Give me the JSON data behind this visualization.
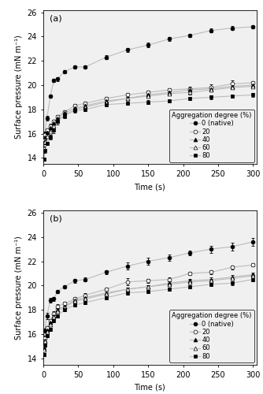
{
  "panel_a": {
    "label": "(a)",
    "series": [
      {
        "name": "0 (native)",
        "marker": "o",
        "fillstyle": "full",
        "x": [
          1,
          2,
          5,
          10,
          15,
          20,
          30,
          45,
          60,
          90,
          120,
          150,
          180,
          210,
          240,
          270,
          300
        ],
        "y": [
          15.5,
          16.0,
          17.3,
          19.1,
          20.4,
          20.5,
          21.1,
          21.5,
          21.5,
          22.3,
          22.9,
          23.3,
          23.8,
          24.1,
          24.5,
          24.7,
          24.8
        ],
        "yerr": [
          0.15,
          0.15,
          0.2,
          0.15,
          0.15,
          0.15,
          0.15,
          0.15,
          0.15,
          0.15,
          0.15,
          0.2,
          0.15,
          0.15,
          0.15,
          0.15,
          0.15
        ]
      },
      {
        "name": "20",
        "marker": "o",
        "fillstyle": "none",
        "x": [
          1,
          2,
          5,
          10,
          15,
          20,
          30,
          45,
          60,
          90,
          120,
          150,
          180,
          210,
          240,
          270,
          300
        ],
        "y": [
          15.5,
          15.9,
          16.3,
          16.6,
          17.0,
          17.4,
          17.8,
          18.3,
          18.5,
          18.9,
          19.2,
          19.4,
          19.6,
          19.7,
          19.8,
          20.1,
          20.2
        ],
        "yerr": [
          0.15,
          0.15,
          0.15,
          0.2,
          0.15,
          0.15,
          0.15,
          0.15,
          0.15,
          0.15,
          0.15,
          0.15,
          0.15,
          0.2,
          0.25,
          0.3,
          0.15
        ]
      },
      {
        "name": "40",
        "marker": "^",
        "fillstyle": "full",
        "x": [
          1,
          2,
          5,
          10,
          15,
          20,
          30,
          45,
          60,
          90,
          120,
          150,
          180,
          210,
          240,
          270,
          300
        ],
        "y": [
          15.3,
          15.7,
          16.1,
          16.5,
          16.9,
          17.3,
          17.7,
          18.1,
          18.3,
          18.7,
          18.9,
          19.2,
          19.4,
          19.6,
          19.7,
          19.9,
          20.0
        ],
        "yerr": [
          0.15,
          0.15,
          0.15,
          0.15,
          0.15,
          0.15,
          0.15,
          0.15,
          0.15,
          0.15,
          0.15,
          0.15,
          0.15,
          0.15,
          0.15,
          0.2,
          0.2
        ]
      },
      {
        "name": "60",
        "marker": "^",
        "fillstyle": "none",
        "x": [
          1,
          2,
          5,
          10,
          15,
          20,
          30,
          45,
          60,
          90,
          120,
          150,
          180,
          210,
          240,
          270,
          300
        ],
        "y": [
          14.8,
          15.3,
          15.8,
          16.2,
          16.6,
          17.1,
          17.5,
          18.0,
          18.2,
          18.6,
          18.9,
          19.1,
          19.3,
          19.4,
          19.6,
          19.8,
          19.9
        ],
        "yerr": [
          0.15,
          0.15,
          0.15,
          0.15,
          0.15,
          0.15,
          0.15,
          0.15,
          0.15,
          0.15,
          0.15,
          0.15,
          0.15,
          0.15,
          0.15,
          0.15,
          0.15
        ]
      },
      {
        "name": "80",
        "marker": "s",
        "fillstyle": "full",
        "x": [
          1,
          2,
          5,
          10,
          15,
          20,
          30,
          45,
          60,
          90,
          120,
          150,
          180,
          210,
          240,
          270,
          300
        ],
        "y": [
          13.9,
          14.6,
          15.2,
          15.7,
          16.3,
          17.0,
          17.5,
          17.9,
          18.0,
          18.4,
          18.5,
          18.6,
          18.7,
          18.9,
          19.0,
          19.1,
          19.2
        ],
        "yerr": [
          0.15,
          0.15,
          0.15,
          0.2,
          0.25,
          0.25,
          0.2,
          0.15,
          0.15,
          0.15,
          0.15,
          0.15,
          0.15,
          0.15,
          0.15,
          0.15,
          0.15
        ]
      }
    ],
    "ylim": [
      13.5,
      26.2
    ],
    "yticks": [
      14,
      16,
      18,
      20,
      22,
      24,
      26
    ],
    "xlim": [
      0,
      305
    ],
    "xticks": [
      0,
      50,
      100,
      150,
      200,
      250,
      300
    ]
  },
  "panel_b": {
    "label": "(b)",
    "series": [
      {
        "name": "0 (native)",
        "marker": "o",
        "fillstyle": "full",
        "x": [
          1,
          2,
          5,
          10,
          15,
          20,
          30,
          45,
          60,
          90,
          120,
          150,
          180,
          210,
          240,
          270,
          300
        ],
        "y": [
          15.2,
          16.3,
          17.5,
          18.8,
          18.9,
          19.5,
          19.9,
          20.4,
          20.5,
          21.1,
          21.6,
          22.0,
          22.3,
          22.7,
          23.0,
          23.2,
          23.6
        ],
        "yerr": [
          0.15,
          0.15,
          0.25,
          0.2,
          0.15,
          0.15,
          0.15,
          0.15,
          0.15,
          0.15,
          0.3,
          0.3,
          0.25,
          0.2,
          0.3,
          0.3,
          0.3
        ]
      },
      {
        "name": "20",
        "marker": "o",
        "fillstyle": "none",
        "x": [
          1,
          2,
          5,
          10,
          15,
          20,
          30,
          45,
          60,
          90,
          120,
          150,
          180,
          210,
          240,
          270,
          300
        ],
        "y": [
          15.0,
          15.7,
          16.5,
          17.1,
          17.7,
          18.3,
          18.5,
          18.9,
          19.2,
          19.7,
          20.3,
          20.4,
          20.5,
          21.0,
          21.1,
          21.5,
          21.7
        ],
        "yerr": [
          0.15,
          0.15,
          0.15,
          0.15,
          0.15,
          0.15,
          0.15,
          0.15,
          0.15,
          0.15,
          0.3,
          0.15,
          0.15,
          0.15,
          0.15,
          0.15,
          0.15
        ]
      },
      {
        "name": "40",
        "marker": "^",
        "fillstyle": "full",
        "x": [
          1,
          2,
          5,
          10,
          15,
          20,
          30,
          45,
          60,
          90,
          120,
          150,
          180,
          210,
          240,
          270,
          300
        ],
        "y": [
          14.8,
          15.5,
          16.3,
          17.0,
          17.5,
          18.0,
          18.3,
          18.8,
          19.0,
          19.4,
          19.7,
          19.9,
          20.2,
          20.4,
          20.5,
          20.7,
          20.9
        ],
        "yerr": [
          0.15,
          0.15,
          0.15,
          0.15,
          0.15,
          0.15,
          0.15,
          0.15,
          0.15,
          0.15,
          0.15,
          0.15,
          0.15,
          0.15,
          0.15,
          0.15,
          0.15
        ]
      },
      {
        "name": "60",
        "marker": "^",
        "fillstyle": "none",
        "x": [
          1,
          2,
          5,
          10,
          15,
          20,
          30,
          45,
          60,
          90,
          120,
          150,
          180,
          210,
          240,
          270,
          300
        ],
        "y": [
          14.7,
          15.4,
          16.2,
          16.8,
          17.4,
          17.9,
          18.2,
          18.7,
          18.9,
          19.3,
          19.7,
          19.9,
          20.1,
          20.3,
          20.4,
          20.6,
          20.8
        ],
        "yerr": [
          0.15,
          0.15,
          0.15,
          0.15,
          0.15,
          0.15,
          0.15,
          0.15,
          0.15,
          0.15,
          0.15,
          0.15,
          0.15,
          0.15,
          0.15,
          0.15,
          0.15
        ]
      },
      {
        "name": "80",
        "marker": "s",
        "fillstyle": "full",
        "x": [
          1,
          2,
          5,
          10,
          15,
          20,
          30,
          45,
          60,
          90,
          120,
          150,
          180,
          210,
          240,
          270,
          300
        ],
        "y": [
          14.3,
          15.1,
          15.9,
          16.4,
          17.1,
          17.5,
          18.0,
          18.4,
          18.6,
          19.0,
          19.4,
          19.5,
          19.7,
          19.9,
          20.1,
          20.2,
          20.5
        ],
        "yerr": [
          0.15,
          0.15,
          0.15,
          0.15,
          0.15,
          0.15,
          0.15,
          0.15,
          0.15,
          0.15,
          0.15,
          0.15,
          0.15,
          0.15,
          0.15,
          0.15,
          0.15
        ]
      }
    ],
    "ylim": [
      13.5,
      26.2
    ],
    "yticks": [
      14,
      16,
      18,
      20,
      22,
      24,
      26
    ],
    "xlim": [
      0,
      305
    ],
    "xticks": [
      0,
      50,
      100,
      150,
      200,
      250,
      300
    ]
  },
  "ylabel": "Surface pressure (mN m⁻¹)",
  "xlabel": "Time (s)",
  "legend_title": "Aggregation degree (%)",
  "line_color": "#bbbbbb",
  "line_width": 0.8,
  "marker_size": 3.5,
  "capsize": 1.5,
  "elinewidth": 0.6,
  "font_size": 7,
  "legend_font_size": 6,
  "bg_color": "#f0f0f0"
}
